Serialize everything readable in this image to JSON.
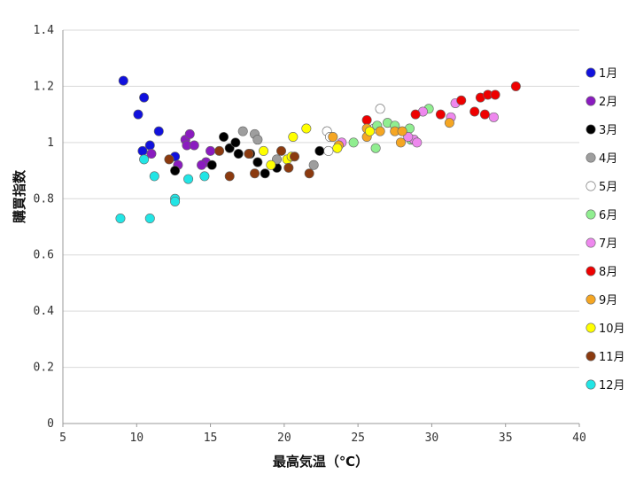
{
  "chart_data": {
    "type": "scatter",
    "xlabel": "最高気温（℃）",
    "ylabel": "購買指数",
    "xlim": [
      5,
      40
    ],
    "ylim": [
      0,
      1.4
    ],
    "x_ticks": [
      "5",
      "10",
      "15",
      "20",
      "25",
      "30",
      "35",
      "40"
    ],
    "y_ticks": [
      "0",
      "0.2",
      "0.4",
      "0.6",
      "0.8",
      "1",
      "1.2",
      "1.4"
    ],
    "grid": "horizontal",
    "legend_position": "right",
    "series": [
      {
        "name": "1月",
        "color": "#1111dd",
        "x": [
          9.1,
          10.5,
          10.1,
          11.5,
          10.4,
          10.9,
          12.6
        ],
        "y": [
          1.22,
          1.16,
          1.1,
          1.04,
          0.97,
          0.99,
          0.95
        ]
      },
      {
        "name": "2月",
        "color": "#8a1bbf",
        "x": [
          11.0,
          13.3,
          13.6,
          13.4,
          13.9,
          14.7,
          15.0,
          12.8,
          14.4
        ],
        "y": [
          0.96,
          1.01,
          1.03,
          0.99,
          0.99,
          0.93,
          0.97,
          0.92,
          0.92
        ]
      },
      {
        "name": "3月",
        "color": "#000000",
        "x": [
          12.6,
          15.1,
          15.9,
          16.3,
          16.7,
          16.9,
          17.7,
          18.2,
          18.7,
          19.5,
          22.4
        ],
        "y": [
          0.9,
          0.92,
          1.02,
          0.98,
          1.0,
          0.96,
          0.96,
          0.93,
          0.89,
          0.91,
          0.97
        ]
      },
      {
        "name": "4月",
        "color": "#9e9e9e",
        "x": [
          17.2,
          18.0,
          18.2,
          19.5,
          22.0
        ],
        "y": [
          1.04,
          1.03,
          1.01,
          0.94,
          0.92
        ]
      },
      {
        "name": "5月",
        "color": "#ffffff",
        "x": [
          22.9,
          23.0,
          23.1,
          26.5,
          26.1
        ],
        "y": [
          1.04,
          0.97,
          1.02,
          1.12,
          1.05
        ]
      },
      {
        "name": "6月",
        "color": "#90ee90",
        "x": [
          24.7,
          26.2,
          26.3,
          27.0,
          27.5,
          28.5,
          29.8,
          28.6
        ],
        "y": [
          1.0,
          0.98,
          1.06,
          1.07,
          1.06,
          1.05,
          1.12,
          1.01
        ]
      },
      {
        "name": "7月",
        "color": "#ee88ee",
        "x": [
          23.9,
          29.4,
          31.3,
          31.6,
          34.2,
          28.8,
          29.0,
          28.4
        ],
        "y": [
          1.0,
          1.11,
          1.09,
          1.14,
          1.09,
          1.01,
          1.0,
          1.02
        ]
      },
      {
        "name": "8月",
        "color": "#ee0000",
        "x": [
          25.6,
          28.9,
          30.6,
          32.0,
          32.9,
          33.3,
          33.6,
          33.8,
          34.3,
          35.7
        ],
        "y": [
          1.08,
          1.1,
          1.1,
          1.15,
          1.11,
          1.16,
          1.1,
          1.17,
          1.17,
          1.2
        ]
      },
      {
        "name": "9月",
        "color": "#f5a623",
        "x": [
          23.3,
          23.7,
          25.6,
          25.6,
          26.5,
          27.5,
          27.9,
          28.0,
          31.2
        ],
        "y": [
          1.02,
          0.99,
          1.05,
          1.02,
          1.04,
          1.04,
          1.0,
          1.04,
          1.07
        ]
      },
      {
        "name": "10月",
        "color": "#ffff00",
        "x": [
          18.6,
          19.1,
          20.2,
          20.5,
          20.6,
          21.5,
          23.6,
          25.8
        ],
        "y": [
          0.97,
          0.92,
          0.94,
          0.95,
          1.02,
          1.05,
          0.98,
          1.04
        ]
      },
      {
        "name": "11月",
        "color": "#8b3a0f",
        "x": [
          12.2,
          15.6,
          16.3,
          17.6,
          18.0,
          19.8,
          20.3,
          20.7,
          21.7
        ],
        "y": [
          0.94,
          0.97,
          0.88,
          0.96,
          0.89,
          0.97,
          0.91,
          0.95,
          0.89
        ]
      },
      {
        "name": "12月",
        "color": "#22e5e5",
        "x": [
          8.9,
          10.5,
          10.9,
          11.2,
          12.6,
          12.6,
          13.5,
          14.6
        ],
        "y": [
          0.73,
          0.94,
          0.73,
          0.88,
          0.8,
          0.79,
          0.87,
          0.88
        ]
      }
    ]
  }
}
